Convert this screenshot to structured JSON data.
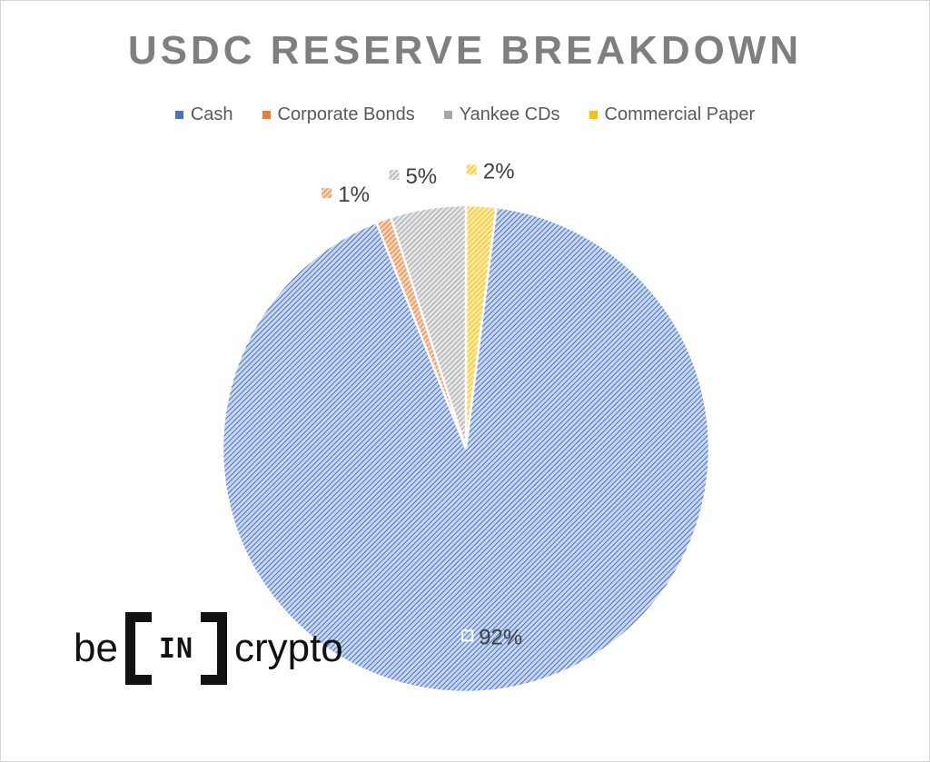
{
  "chart_data": {
    "type": "pie",
    "title": "USDC RESERVE BREAKDOWN",
    "categories": [
      "Cash",
      "Corporate Bonds",
      "Yankee CDs",
      "Commercial Paper"
    ],
    "values": [
      92,
      1,
      5,
      2
    ],
    "data_labels": [
      "92%",
      "1%",
      "5%",
      "2%"
    ],
    "colors": [
      "#4472c4",
      "#ed7d31",
      "#a5a5a5",
      "#ffc000"
    ],
    "legend_position": "top"
  },
  "watermark": {
    "prefix": "be",
    "bracket_text": "IN",
    "suffix": "crypto"
  }
}
